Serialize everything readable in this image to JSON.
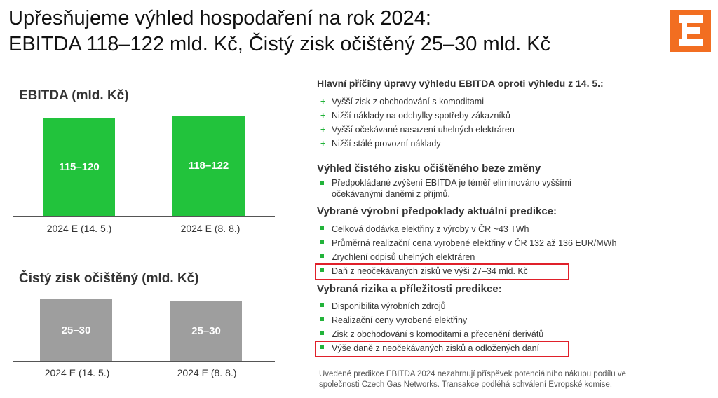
{
  "title_line1": "Upřesňujeme výhled hospodaření na rok 2024:",
  "title_line2": "EBITDA 118–122 mld. Kč, Čistý zisk očištěný 25–30 mld. Kč",
  "ebitda_chart": {
    "title": "EBITDA (mld. Kč)",
    "colors": {
      "bar": "#22c33c"
    },
    "categories": [
      "2024 E (14. 5.)",
      "2024 E (8. 8.)"
    ],
    "labels": [
      "115–120",
      "118–122"
    ]
  },
  "net_chart": {
    "title": "Čistý zisk očištěný (mld. Kč)",
    "colors": {
      "bar": "#9e9e9e"
    },
    "categories": [
      "2024 E (14. 5.)",
      "2024 E (8. 8.)"
    ],
    "labels": [
      "25–30",
      "25–30"
    ]
  },
  "chart_data": [
    {
      "type": "bar",
      "title": "EBITDA (mld. Kč)",
      "categories": [
        "2024 E (14. 5.)",
        "2024 E (8. 8.)"
      ],
      "series": [
        {
          "values": [
            [
              115,
              120
            ],
            [
              118,
              122
            ]
          ]
        }
      ],
      "data_labels": [
        "115–120",
        "118–122"
      ]
    },
    {
      "type": "bar",
      "title": "Čistý zisk očištěný (mld. Kč)",
      "categories": [
        "2024 E (14. 5.)",
        "2024 E (8. 8.)"
      ],
      "series": [
        {
          "values": [
            [
              25,
              30
            ],
            [
              25,
              30
            ]
          ]
        }
      ],
      "data_labels": [
        "25–30",
        "25–30"
      ]
    }
  ],
  "sections": {
    "ebitda_reasons": {
      "heading": "Hlavní příčiny úpravy výhledu EBITDA oproti výhledu z 14. 5.:",
      "marker": "+",
      "items": [
        "Vyšší zisk z obchodování s komoditami",
        "Nižší náklady na odchylky spotřeby zákazníků",
        "Vyšší očekávané nasazení uhelných elektráren",
        "Nižší stálé provozní náklady"
      ]
    },
    "net_profit": {
      "heading": "Výhled čistého zisku očištěného beze změny",
      "items": [
        "Předpokládané zvýšení EBITDA je téměř eliminováno vyššími",
        "očekávanými daněmi z příjmů."
      ]
    },
    "assumptions": {
      "heading": "Vybrané výrobní předpoklady aktuální predikce:",
      "items": [
        "Celková dodávka elektřiny z výroby v ČR ~43 TWh",
        "Průměrná realizační cena vyrobené elektřiny v ČR 132 až 136 EUR/MWh",
        "Zrychlení odpisů uhelných elektráren",
        "Daň z neočekávaných zisků ve výši 27–34 mld. Kč"
      ]
    },
    "risks": {
      "heading": "Vybraná rizika a příležitosti predikce:",
      "items": [
        "Disponibilita výrobních zdrojů",
        "Realizační ceny vyrobené elektřiny",
        "Zisk z obchodování s komoditami a přecenění derivátů",
        "Výše daně z neočekávaných zisků a odložených daní"
      ]
    }
  },
  "footnote_line1": "Uvedené predikce EBITDA 2024 nezahrnují příspěvek potenciálního nákupu podílu ve",
  "footnote_line2": "společnosti Czech Gas Networks. Transakce podléhá schválení Evropské komise.",
  "highlight_color": "#e0202a",
  "brand_color": "#f26e21",
  "logo_icon": "cez-logo-icon"
}
